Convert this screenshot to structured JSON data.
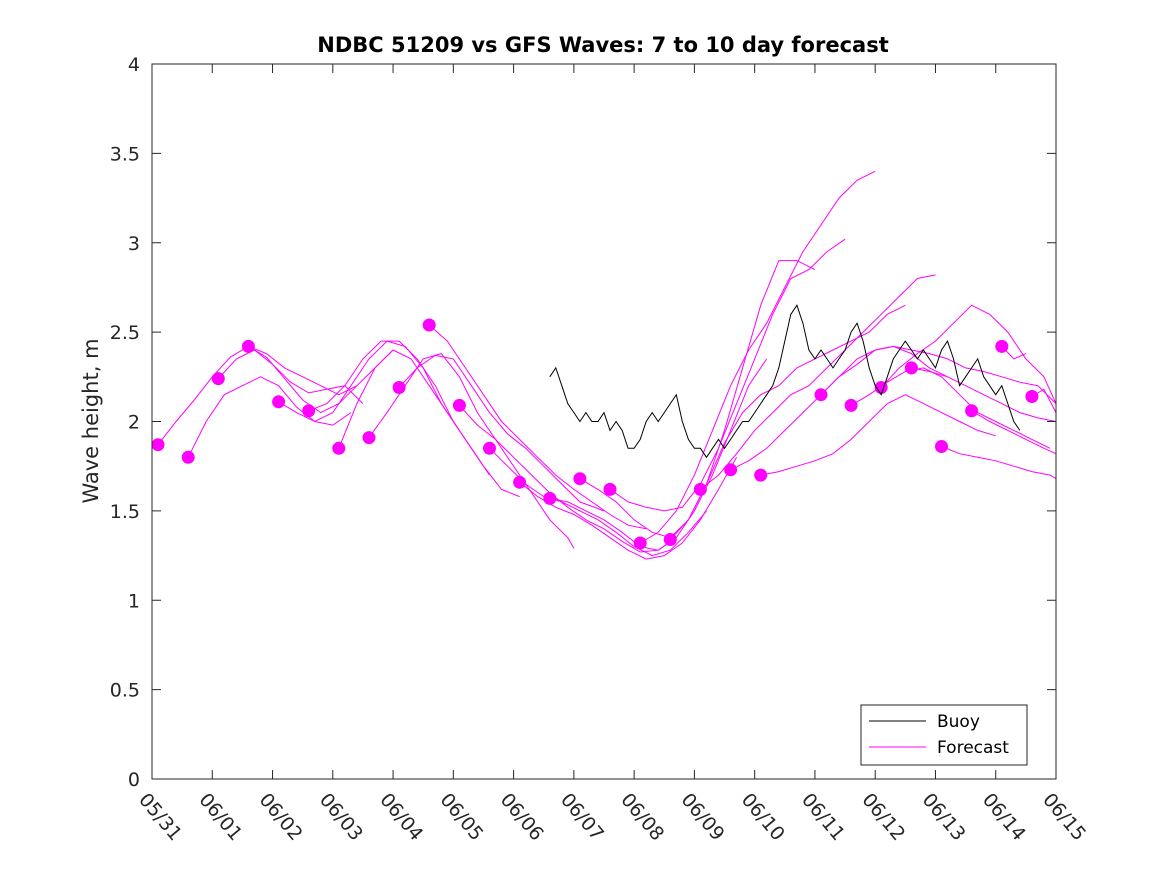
{
  "chart_data": {
    "type": "line",
    "title": "NDBC 51209 vs GFS Waves: 7 to 10 day forecast",
    "xlabel": "",
    "ylabel": "Wave height, m",
    "ylim": [
      0,
      4
    ],
    "yticks": [
      "0",
      "0.5",
      "1",
      "1.5",
      "2",
      "2.5",
      "3",
      "3.5",
      "4"
    ],
    "xlim": [
      "05/31",
      "06/15"
    ],
    "xticks": [
      "05/31",
      "06/01",
      "06/02",
      "06/03",
      "06/04",
      "06/05",
      "06/06",
      "06/07",
      "06/08",
      "06/09",
      "06/10",
      "06/11",
      "06/12",
      "06/13",
      "06/14",
      "06/15"
    ],
    "legend": {
      "placement": "bottom-right",
      "entries": [
        {
          "label": "Buoy",
          "color": "#000000"
        },
        {
          "label": "Forecast",
          "color": "#ff00ff"
        }
      ]
    },
    "series": [
      {
        "name": "Buoy",
        "color": "#000000",
        "x": [
          6.6,
          6.7,
          6.8,
          6.9,
          7.0,
          7.1,
          7.2,
          7.3,
          7.4,
          7.5,
          7.6,
          7.7,
          7.8,
          7.9,
          8.0,
          8.1,
          8.2,
          8.3,
          8.4,
          8.5,
          8.6,
          8.7,
          8.8,
          8.9,
          9.0,
          9.1,
          9.2,
          9.3,
          9.4,
          9.5,
          9.6,
          9.7,
          9.8,
          9.9,
          10.0,
          10.1,
          10.2,
          10.3,
          10.4,
          10.5,
          10.6,
          10.7,
          10.8,
          10.9,
          11.0,
          11.1,
          11.2,
          11.3,
          11.4,
          11.5,
          11.6,
          11.7,
          11.8,
          11.9,
          12.0,
          12.1,
          12.2,
          12.3,
          12.4,
          12.5,
          12.6,
          12.7,
          12.8,
          12.9,
          13.0,
          13.1,
          13.2,
          13.3,
          13.4,
          13.5,
          13.6,
          13.7,
          13.8,
          13.9,
          14.0,
          14.1,
          14.2,
          14.3,
          14.4
        ],
        "values": [
          2.25,
          2.3,
          2.2,
          2.1,
          2.05,
          2.0,
          2.05,
          2.0,
          2.0,
          2.05,
          1.95,
          2.0,
          1.95,
          1.85,
          1.85,
          1.9,
          2.0,
          2.05,
          2.0,
          2.05,
          2.1,
          2.15,
          2.0,
          1.9,
          1.85,
          1.85,
          1.8,
          1.85,
          1.9,
          1.85,
          1.9,
          1.95,
          2.0,
          2.0,
          2.05,
          2.1,
          2.15,
          2.2,
          2.3,
          2.45,
          2.6,
          2.65,
          2.55,
          2.4,
          2.35,
          2.4,
          2.35,
          2.3,
          2.35,
          2.4,
          2.5,
          2.55,
          2.45,
          2.3,
          2.2,
          2.15,
          2.25,
          2.35,
          2.4,
          2.45,
          2.4,
          2.35,
          2.4,
          2.35,
          2.3,
          2.4,
          2.45,
          2.35,
          2.2,
          2.25,
          2.3,
          2.35,
          2.25,
          2.2,
          2.15,
          2.2,
          2.1,
          2.0,
          1.95
        ]
      },
      {
        "name": "Forecast",
        "color": "#ff00ff",
        "runs": [
          {
            "x": [
              0.1,
              0.4,
              0.7,
              1.0,
              1.3,
              1.6,
              1.9,
              2.2,
              2.5,
              2.8,
              3.1,
              3.4
            ],
            "values": [
              1.87,
              2.0,
              2.12,
              2.25,
              2.36,
              2.42,
              2.36,
              2.24,
              2.12,
              2.05,
              2.1,
              2.2
            ]
          },
          {
            "x": [
              0.6,
              0.9,
              1.2,
              1.5,
              1.8,
              2.1,
              2.4,
              2.7,
              3.0,
              3.3
            ],
            "values": [
              1.8,
              2.0,
              2.15,
              2.2,
              2.25,
              2.2,
              2.08,
              2.0,
              1.98,
              2.05
            ]
          },
          {
            "x": [
              1.1,
              1.4,
              1.7,
              2.0,
              2.3,
              2.6,
              2.9,
              3.2,
              3.5
            ],
            "values": [
              2.24,
              2.35,
              2.4,
              2.32,
              2.22,
              2.16,
              2.18,
              2.2,
              2.1
            ]
          },
          {
            "x": [
              1.6,
              1.9,
              2.2,
              2.5,
              2.8,
              3.1,
              3.4,
              3.7,
              4.0
            ],
            "values": [
              2.42,
              2.38,
              2.3,
              2.25,
              2.2,
              2.15,
              2.2,
              2.3,
              2.4
            ]
          },
          {
            "x": [
              2.1,
              2.4,
              2.7,
              3.0,
              3.3,
              3.6,
              3.9,
              4.2,
              4.5,
              4.8,
              5.1
            ],
            "values": [
              2.11,
              2.05,
              2.0,
              2.05,
              2.2,
              2.35,
              2.45,
              2.42,
              2.3,
              2.1,
              1.95
            ]
          },
          {
            "x": [
              2.6,
              2.9,
              3.2,
              3.5,
              3.8,
              4.1,
              4.4,
              4.7,
              5.0,
              5.3,
              5.6
            ],
            "values": [
              2.06,
              2.1,
              2.2,
              2.35,
              2.45,
              2.45,
              2.35,
              2.2,
              2.0,
              1.85,
              1.7
            ]
          },
          {
            "x": [
              3.1,
              3.4,
              3.7,
              4.0,
              4.3,
              4.6,
              4.9,
              5.2,
              5.5,
              5.8,
              6.1
            ],
            "values": [
              1.85,
              2.1,
              2.3,
              2.4,
              2.35,
              2.2,
              2.05,
              1.9,
              1.75,
              1.62,
              1.58
            ]
          },
          {
            "x": [
              3.6,
              3.9,
              4.2,
              4.5,
              4.8,
              5.1,
              5.4,
              5.7,
              6.0,
              6.3,
              6.6,
              6.9,
              7.0
            ],
            "values": [
              1.91,
              2.05,
              2.2,
              2.35,
              2.38,
              2.25,
              2.05,
              1.9,
              1.75,
              1.6,
              1.45,
              1.35,
              1.29
            ]
          },
          {
            "x": [
              4.1,
              4.4,
              4.7,
              5.0,
              5.3,
              5.6,
              5.9,
              6.2,
              6.5,
              6.8,
              7.1,
              7.5
            ],
            "values": [
              2.19,
              2.3,
              2.37,
              2.35,
              2.2,
              2.05,
              1.93,
              1.85,
              1.75,
              1.65,
              1.55,
              1.5
            ]
          },
          {
            "x": [
              4.6,
              4.9,
              5.2,
              5.5,
              5.8,
              6.1,
              6.4,
              6.7,
              7.0,
              7.3,
              7.6,
              7.9,
              8.2
            ],
            "values": [
              2.54,
              2.45,
              2.3,
              2.15,
              2.0,
              1.9,
              1.8,
              1.7,
              1.62,
              1.55,
              1.48,
              1.42,
              1.4
            ]
          },
          {
            "x": [
              5.1,
              5.4,
              5.7,
              6.0,
              6.3,
              6.6,
              6.9,
              7.2,
              7.5,
              7.8,
              8.1,
              8.4,
              8.7
            ],
            "values": [
              2.09,
              1.98,
              1.9,
              1.8,
              1.7,
              1.6,
              1.52,
              1.45,
              1.4,
              1.33,
              1.27,
              1.28,
              1.35
            ]
          },
          {
            "x": [
              5.6,
              5.9,
              6.2,
              6.5,
              6.8,
              7.1,
              7.4,
              7.7,
              8.0,
              8.3,
              8.6,
              8.9,
              9.2
            ],
            "values": [
              1.85,
              1.75,
              1.65,
              1.58,
              1.55,
              1.5,
              1.45,
              1.38,
              1.3,
              1.25,
              1.28,
              1.38,
              1.5
            ]
          },
          {
            "x": [
              6.1,
              6.4,
              6.7,
              7.0,
              7.3,
              7.6,
              7.9,
              8.2,
              8.5,
              8.8,
              9.1,
              9.4,
              9.7
            ],
            "values": [
              1.66,
              1.58,
              1.52,
              1.48,
              1.42,
              1.35,
              1.28,
              1.23,
              1.25,
              1.32,
              1.45,
              1.62,
              1.8
            ]
          },
          {
            "x": [
              6.6,
              6.9,
              7.2,
              7.5,
              7.8,
              8.1,
              8.4,
              8.7,
              9.0,
              9.3,
              9.6,
              9.9,
              10.2
            ],
            "values": [
              1.57,
              1.55,
              1.5,
              1.45,
              1.38,
              1.3,
              1.28,
              1.35,
              1.5,
              1.7,
              1.95,
              2.2,
              2.35
            ]
          },
          {
            "x": [
              7.1,
              7.4,
              7.7,
              8.0,
              8.3,
              8.6,
              8.9,
              9.2,
              9.5,
              9.8,
              10.1,
              10.4,
              10.7,
              11.0
            ],
            "values": [
              1.68,
              1.62,
              1.55,
              1.45,
              1.38,
              1.35,
              1.45,
              1.65,
              1.95,
              2.3,
              2.65,
              2.9,
              2.9,
              2.85
            ]
          },
          {
            "x": [
              7.6,
              7.9,
              8.2,
              8.5,
              8.8,
              9.1,
              9.4,
              9.7,
              10.0,
              10.3,
              10.6,
              10.9,
              11.2,
              11.5
            ],
            "values": [
              1.62,
              1.55,
              1.52,
              1.5,
              1.52,
              1.65,
              1.85,
              2.1,
              2.35,
              2.6,
              2.8,
              2.85,
              2.95,
              3.02
            ]
          },
          {
            "x": [
              8.1,
              8.4,
              8.7,
              9.0,
              9.3,
              9.6,
              9.9,
              10.2,
              10.5,
              10.8,
              11.1,
              11.4,
              11.7,
              12.0
            ],
            "values": [
              1.32,
              1.38,
              1.5,
              1.7,
              1.95,
              2.2,
              2.4,
              2.55,
              2.75,
              2.95,
              3.1,
              3.25,
              3.35,
              3.4
            ]
          },
          {
            "x": [
              8.6,
              8.9,
              9.2,
              9.5,
              9.8,
              10.1,
              10.4,
              10.7,
              11.0,
              11.3,
              11.6,
              11.9,
              12.2,
              12.5
            ],
            "values": [
              1.34,
              1.45,
              1.65,
              1.88,
              2.05,
              2.15,
              2.2,
              2.3,
              2.35,
              2.4,
              2.45,
              2.5,
              2.6,
              2.65
            ]
          },
          {
            "x": [
              9.1,
              9.4,
              9.7,
              10.0,
              10.3,
              10.6,
              10.9,
              11.2,
              11.5,
              11.8,
              12.1,
              12.4,
              12.7,
              13.0
            ],
            "values": [
              1.62,
              1.7,
              1.82,
              1.95,
              2.05,
              2.15,
              2.2,
              2.3,
              2.4,
              2.5,
              2.6,
              2.7,
              2.8,
              2.82
            ]
          },
          {
            "x": [
              9.6,
              9.9,
              10.2,
              10.5,
              10.8,
              11.1,
              11.4,
              11.7,
              12.0,
              12.3,
              12.6,
              12.9,
              13.2
            ],
            "values": [
              1.73,
              1.78,
              1.85,
              1.95,
              2.05,
              2.15,
              2.25,
              2.32,
              2.4,
              2.42,
              2.38,
              2.3,
              2.25
            ]
          },
          {
            "x": [
              10.1,
              10.4,
              10.7,
              11.0,
              11.3,
              11.6,
              11.9,
              12.2,
              12.5,
              12.8,
              13.1,
              13.4,
              13.7,
              14.0
            ],
            "values": [
              1.7,
              1.72,
              1.75,
              1.78,
              1.82,
              1.9,
              2.0,
              2.1,
              2.15,
              2.1,
              2.05,
              2.0,
              1.95,
              1.92
            ]
          },
          {
            "x": [
              11.1,
              11.4,
              11.7,
              12.0,
              12.3,
              12.6,
              12.9,
              13.2,
              13.5,
              13.8,
              14.1,
              14.4,
              14.7,
              15.0
            ],
            "values": [
              2.15,
              2.25,
              2.35,
              2.4,
              2.42,
              2.4,
              2.38,
              2.35,
              2.3,
              2.28,
              2.25,
              2.22,
              2.2,
              2.1
            ]
          },
          {
            "x": [
              11.6,
              11.9,
              12.2,
              12.5,
              12.8,
              13.1,
              13.4,
              13.7,
              14.0,
              14.3,
              14.6,
              14.9
            ],
            "values": [
              2.09,
              2.15,
              2.22,
              2.28,
              2.3,
              2.25,
              2.15,
              2.05,
              2.0,
              1.95,
              1.9,
              1.85
            ]
          },
          {
            "x": [
              12.1,
              12.4,
              12.7,
              13.0,
              13.3,
              13.6,
              13.9,
              14.2,
              14.5,
              14.8,
              15.0
            ],
            "values": [
              2.19,
              2.3,
              2.38,
              2.45,
              2.55,
              2.65,
              2.6,
              2.5,
              2.35,
              2.25,
              2.1
            ]
          },
          {
            "x": [
              12.6,
              12.9,
              13.2,
              13.5,
              13.8,
              14.1,
              14.4,
              14.7,
              15.0
            ],
            "values": [
              2.3,
              2.28,
              2.25,
              2.2,
              2.15,
              2.1,
              2.05,
              2.02,
              2.0
            ]
          },
          {
            "x": [
              13.1,
              13.4,
              13.7,
              14.0,
              14.3,
              14.6,
              14.9,
              15.0
            ],
            "values": [
              1.86,
              1.82,
              1.8,
              1.78,
              1.75,
              1.72,
              1.7,
              1.68
            ]
          },
          {
            "x": [
              13.6,
              13.9,
              14.2,
              14.5,
              14.8,
              15.0
            ],
            "values": [
              2.06,
              2.0,
              1.95,
              1.9,
              1.85,
              1.82
            ]
          },
          {
            "x": [
              14.1,
              14.3,
              14.5
            ],
            "values": [
              2.42,
              2.35,
              2.38
            ]
          },
          {
            "x": [
              14.6,
              14.8,
              15.0
            ],
            "values": [
              2.14,
              2.18,
              2.05
            ]
          }
        ]
      }
    ]
  }
}
